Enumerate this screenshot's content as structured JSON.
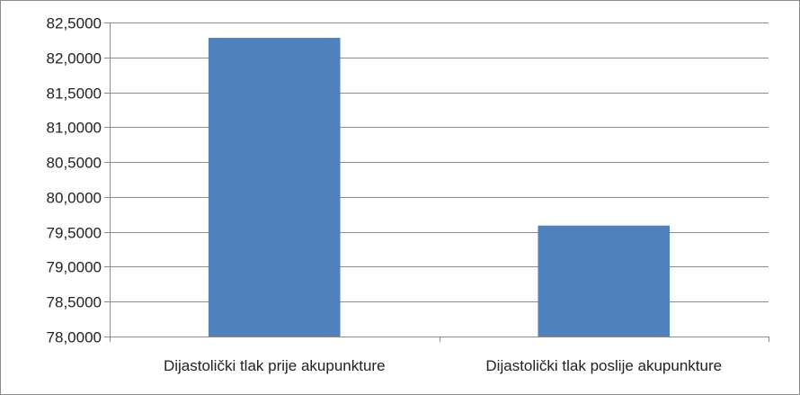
{
  "chart_data": {
    "type": "bar",
    "categories": [
      "Dijastolički tlak prije akupunkture",
      "Dijastolički tlak poslije akupunkture"
    ],
    "values": [
      82.28,
      79.59
    ],
    "ylim": [
      78.0,
      82.5
    ],
    "yticks": [
      78.0,
      78.5,
      79.0,
      79.5,
      80.0,
      80.5,
      81.0,
      81.5,
      82.0,
      82.5
    ],
    "ytick_labels": [
      "78,0000",
      "78,5000",
      "79,0000",
      "79,5000",
      "80,0000",
      "80,5000",
      "81,0000",
      "81,5000",
      "82,0000",
      "82,5000"
    ],
    "grid": true,
    "legend": "none",
    "bar_color": "#4f81bd",
    "grid_color": "#8c8c8c"
  }
}
